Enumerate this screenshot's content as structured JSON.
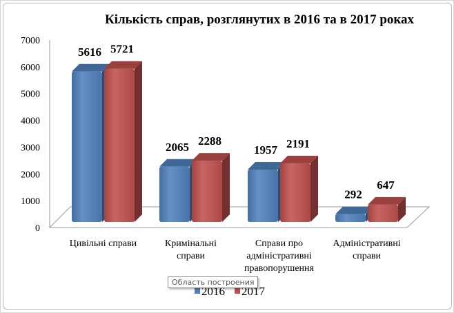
{
  "chart_data": {
    "type": "bar",
    "title": "Кількість справ, розглянутих в 2016 та в 2017 роках",
    "categories": [
      [
        "Цивільні  справи"
      ],
      [
        "Кримінальні",
        "справи"
      ],
      [
        "Справи про",
        "адміністративні",
        "правопорушення"
      ],
      [
        "Адміністративні",
        "справи"
      ]
    ],
    "series": [
      {
        "name": "2016",
        "values": [
          5616,
          2065,
          1957,
          292
        ],
        "color": "#4f81bd"
      },
      {
        "name": "2017",
        "values": [
          5721,
          2288,
          2191,
          647
        ],
        "color": "#c0504d"
      }
    ],
    "ylim": [
      0,
      7000
    ],
    "yticks": [
      0,
      1000,
      2000,
      3000,
      4000,
      5000,
      6000,
      7000
    ],
    "grid": false,
    "legend": "bottom",
    "style": "3d-column"
  },
  "tooltip": "Область построения"
}
